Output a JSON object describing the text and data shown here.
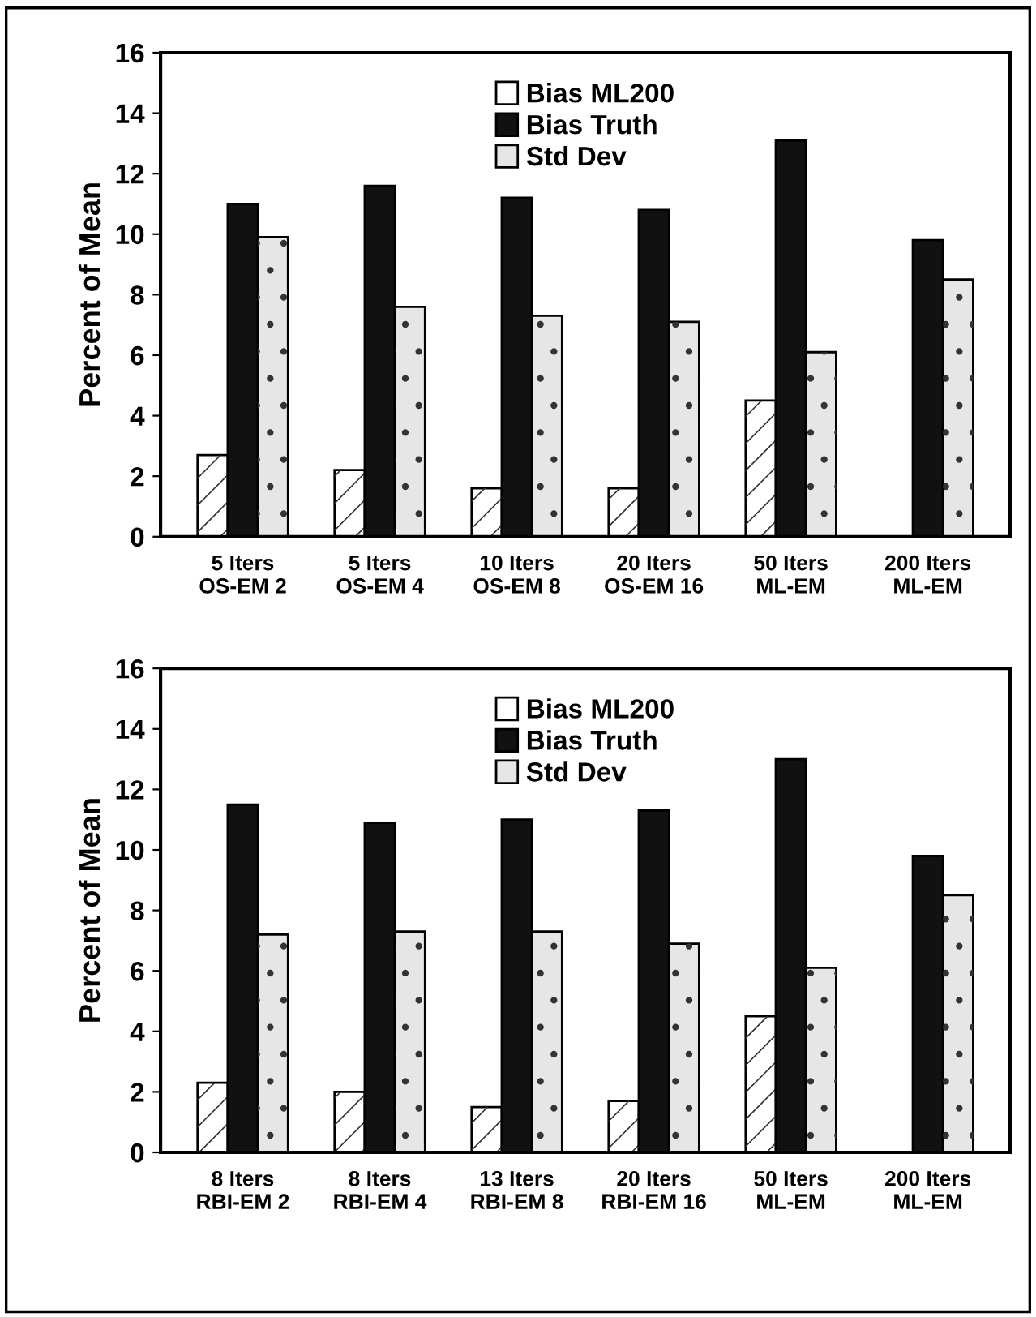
{
  "chart_data": [
    {
      "type": "bar",
      "ylabel": "Percent of Mean",
      "categories": [
        "5 Iters\nOS-EM 2",
        "5 Iters\nOS-EM 4",
        "10 Iters\nOS-EM 8",
        "20 Iters\nOS-EM 16",
        "50 Iters\nML-EM",
        "200 Iters\nML-EM"
      ],
      "series": [
        {
          "name": "Bias ML200",
          "color": "#ffffff",
          "values": [
            2.7,
            2.2,
            1.6,
            1.6,
            4.5,
            null
          ]
        },
        {
          "name": "Bias Truth",
          "color": "#111111",
          "values": [
            11.0,
            11.6,
            11.2,
            10.8,
            13.1,
            9.8
          ]
        },
        {
          "name": "Std Dev",
          "color": "#e6e6e6",
          "values": [
            9.9,
            7.6,
            7.3,
            7.1,
            6.1,
            8.5
          ]
        }
      ],
      "ylim": [
        0,
        16
      ],
      "yticks": [
        0,
        2,
        4,
        6,
        8,
        10,
        12,
        14,
        16
      ],
      "grid": false,
      "legend": "top"
    },
    {
      "type": "bar",
      "ylabel": "Percent of Mean",
      "categories": [
        "8 Iters\nRBI-EM 2",
        "8 Iters\nRBI-EM 4",
        "13 Iters\nRBI-EM 8",
        "20 Iters\nRBI-EM 16",
        "50 Iters\nML-EM",
        "200 Iters\nML-EM"
      ],
      "series": [
        {
          "name": "Bias ML200",
          "color": "#ffffff",
          "values": [
            2.3,
            2.0,
            1.5,
            1.7,
            4.5,
            null
          ]
        },
        {
          "name": "Bias Truth",
          "color": "#111111",
          "values": [
            11.5,
            10.9,
            11.0,
            11.3,
            13.0,
            9.8
          ]
        },
        {
          "name": "Std Dev",
          "color": "#e6e6e6",
          "values": [
            7.2,
            7.3,
            7.3,
            6.9,
            6.1,
            8.5
          ]
        }
      ],
      "ylim": [
        0,
        16
      ],
      "yticks": [
        0,
        2,
        4,
        6,
        8,
        10,
        12,
        14,
        16
      ],
      "grid": false,
      "legend": "top"
    }
  ]
}
